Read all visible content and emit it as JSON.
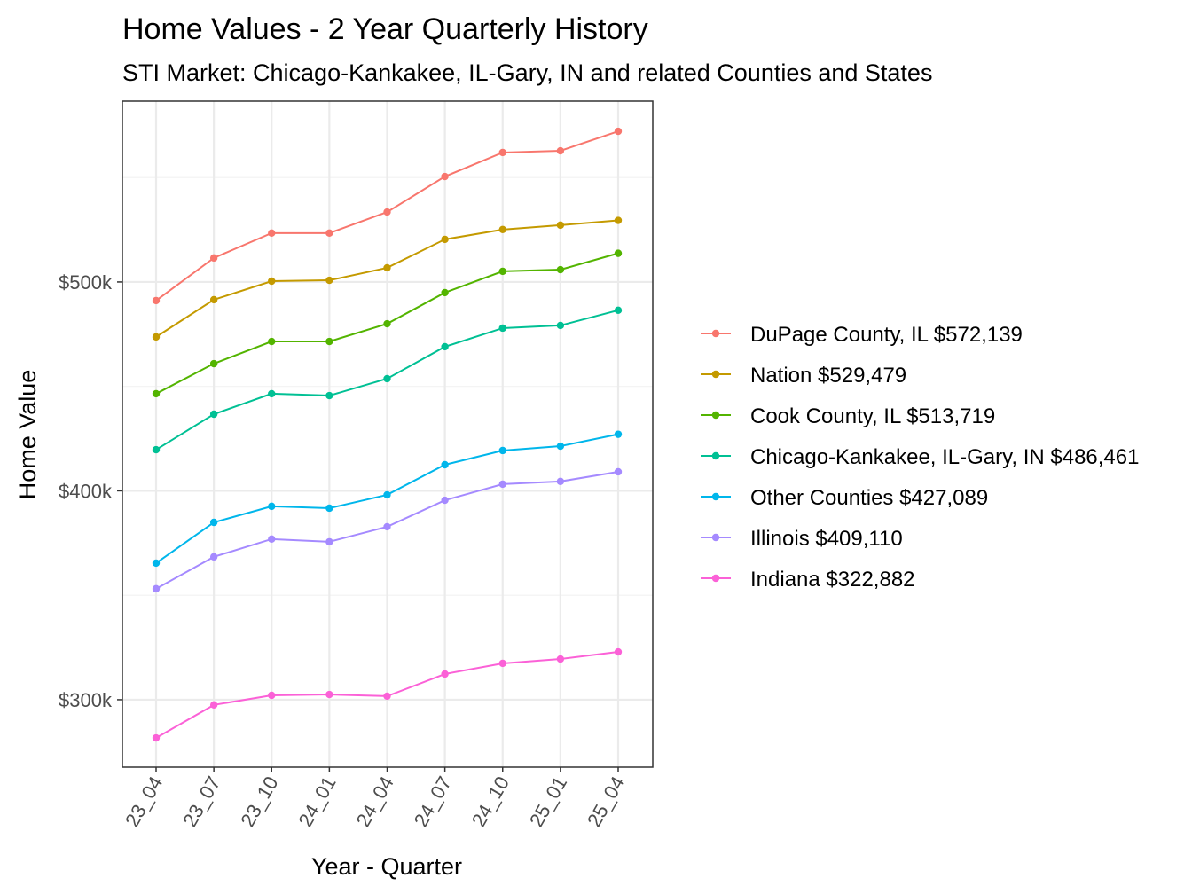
{
  "chart_data": {
    "type": "line",
    "title": "Home Values - 2 Year Quarterly History",
    "subtitle": "STI Market: Chicago-Kankakee, IL-Gary, IN and related Counties and States",
    "xlabel": "Year - Quarter",
    "ylabel": "Home Value",
    "categories": [
      "23_04",
      "23_07",
      "23_10",
      "24_01",
      "24_04",
      "24_07",
      "24_10",
      "25_01",
      "25_04"
    ],
    "ylim": [
      267700,
      586600
    ],
    "yticks": [
      300000,
      400000,
      500000
    ],
    "ytick_labels": [
      "$300k",
      "$400k",
      "$500k"
    ],
    "grid": true,
    "legend_position": "right",
    "series": [
      {
        "name": "DuPage County, IL $572,139",
        "color": "#F8766D",
        "values": [
          491100,
          511500,
          523400,
          523400,
          533500,
          550500,
          562000,
          562800,
          572139
        ]
      },
      {
        "name": "Nation $529,479",
        "color": "#C49A00",
        "values": [
          473700,
          491500,
          500400,
          500800,
          506800,
          520400,
          525100,
          527200,
          529479
        ]
      },
      {
        "name": "Cook County, IL $513,719",
        "color": "#53B400",
        "values": [
          446500,
          460900,
          471500,
          471500,
          480000,
          494900,
          505100,
          505900,
          513719
        ]
      },
      {
        "name": "Chicago-Kankakee, IL-Gary, IN $486,461",
        "color": "#00C094",
        "values": [
          419700,
          436700,
          446500,
          445600,
          453700,
          469000,
          477900,
          479200,
          486461
        ]
      },
      {
        "name": "Other Counties $427,089",
        "color": "#00B6EB",
        "values": [
          365400,
          384900,
          392600,
          391700,
          398100,
          412500,
          419300,
          421400,
          427089
        ]
      },
      {
        "name": "Illinois $409,110",
        "color": "#A58AFF",
        "values": [
          353100,
          368400,
          376900,
          375600,
          382800,
          395500,
          403200,
          404500,
          409110
        ]
      },
      {
        "name": "Indiana $322,882",
        "color": "#FB61D7",
        "values": [
          281700,
          297500,
          302100,
          302500,
          301700,
          312300,
          317400,
          319500,
          322882
        ]
      }
    ]
  }
}
